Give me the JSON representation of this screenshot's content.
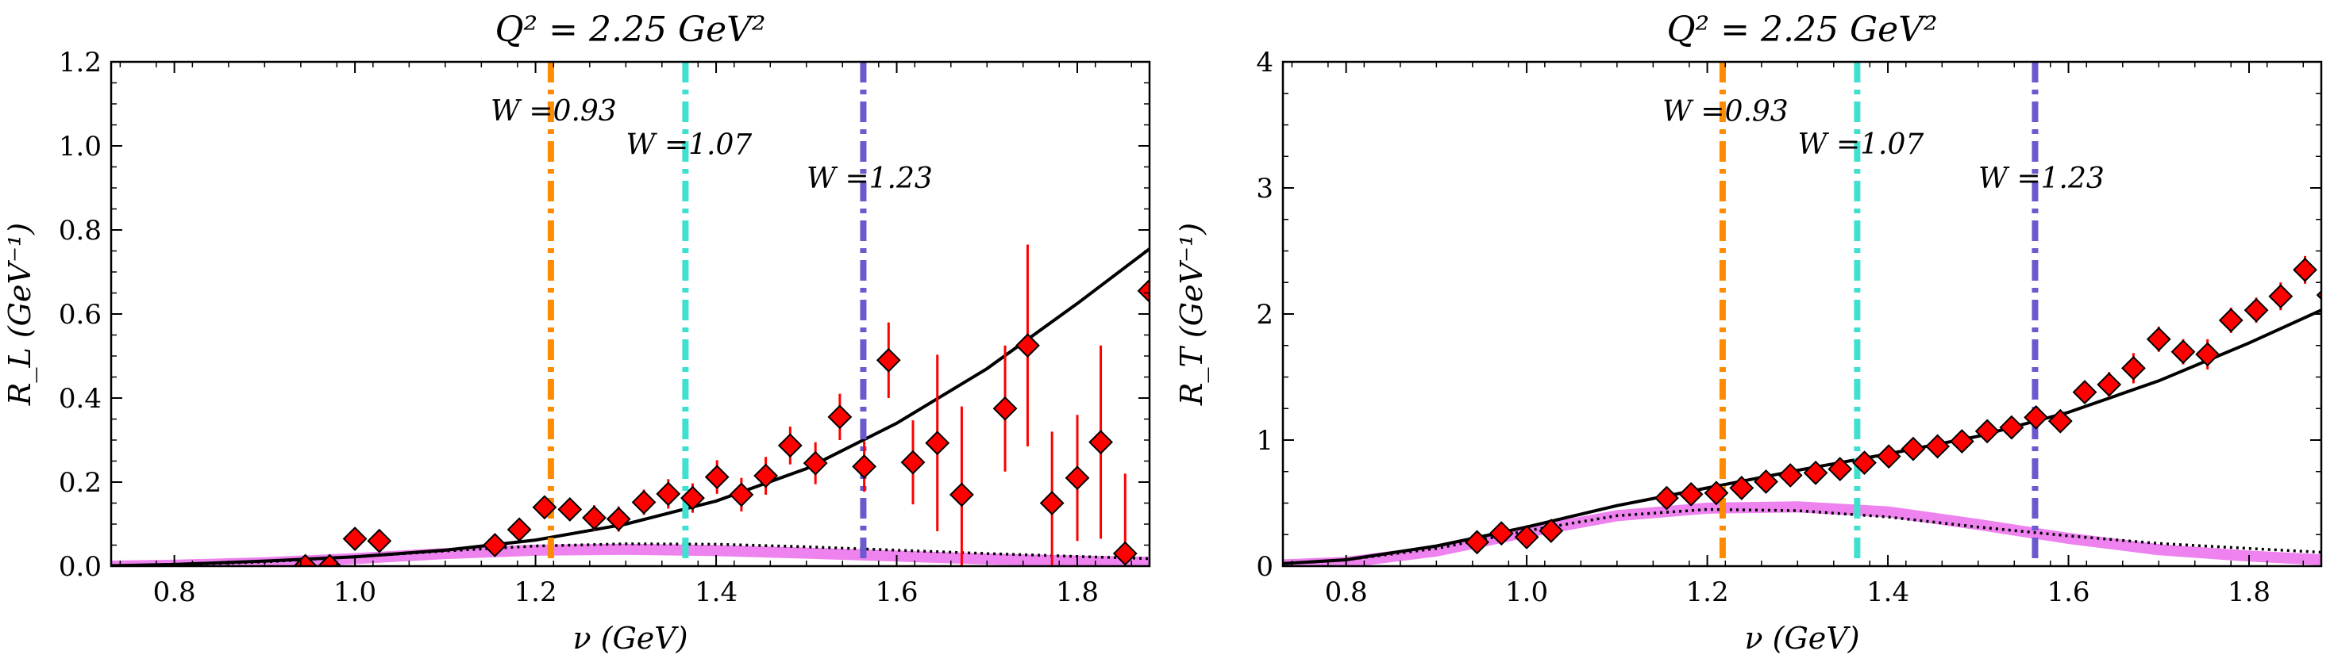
{
  "chart_data": [
    {
      "type": "scatter",
      "title": "Q² = 2.25 GeV²",
      "xlabel": "ν (GeV)",
      "ylabel": "R_L (GeV⁻¹)",
      "xlim": [
        0.73,
        1.88
      ],
      "ylim": [
        0.0,
        1.2
      ],
      "xticks": [
        0.8,
        1.0,
        1.2,
        1.4,
        1.6,
        1.8
      ],
      "xtick_labels": [
        "0.8",
        "1.0",
        "1.2",
        "1.4",
        "1.6",
        "1.8"
      ],
      "yticks": [
        0.0,
        0.2,
        0.4,
        0.6,
        0.8,
        1.0,
        1.2
      ],
      "ytick_labels": [
        "0.0",
        "0.2",
        "0.4",
        "0.6",
        "0.8",
        "1.0",
        "1.2"
      ],
      "grid": false,
      "vlines": [
        {
          "x": 1.217,
          "label": "W =0.93",
          "color": "#ff8c00",
          "label_x": 1.22,
          "label_y": 1.06
        },
        {
          "x": 1.366,
          "label": "W =1.07",
          "color": "#40e0d0",
          "label_x": 1.37,
          "label_y": 0.98
        },
        {
          "x": 1.563,
          "label": "W =1.23",
          "color": "#6a5acd",
          "label_x": 1.57,
          "label_y": 0.9
        }
      ],
      "points": [
        {
          "x": 0.945,
          "y": 0.0,
          "err": 0.0
        },
        {
          "x": 0.972,
          "y": 0.0,
          "err": 0.0
        },
        {
          "x": 1.0,
          "y": 0.065,
          "err": 0.0
        },
        {
          "x": 1.027,
          "y": 0.06,
          "err": 0.0
        },
        {
          "x": 1.155,
          "y": 0.05,
          "err": 0.02
        },
        {
          "x": 1.182,
          "y": 0.087,
          "err": 0.02
        },
        {
          "x": 1.21,
          "y": 0.14,
          "err": 0.02
        },
        {
          "x": 1.238,
          "y": 0.135,
          "err": 0.025
        },
        {
          "x": 1.265,
          "y": 0.115,
          "err": 0.03
        },
        {
          "x": 1.292,
          "y": 0.112,
          "err": 0.03
        },
        {
          "x": 1.32,
          "y": 0.152,
          "err": 0.03
        },
        {
          "x": 1.347,
          "y": 0.172,
          "err": 0.035
        },
        {
          "x": 1.374,
          "y": 0.162,
          "err": 0.035
        },
        {
          "x": 1.401,
          "y": 0.212,
          "err": 0.04
        },
        {
          "x": 1.428,
          "y": 0.17,
          "err": 0.04
        },
        {
          "x": 1.455,
          "y": 0.215,
          "err": 0.045
        },
        {
          "x": 1.482,
          "y": 0.287,
          "err": 0.045
        },
        {
          "x": 1.51,
          "y": 0.245,
          "err": 0.05
        },
        {
          "x": 1.537,
          "y": 0.355,
          "err": 0.055
        },
        {
          "x": 1.564,
          "y": 0.237,
          "err": 0.06
        },
        {
          "x": 1.591,
          "y": 0.49,
          "err": 0.09
        },
        {
          "x": 1.618,
          "y": 0.247,
          "err": 0.1
        },
        {
          "x": 1.645,
          "y": 0.293,
          "err": 0.21
        },
        {
          "x": 1.672,
          "y": 0.17,
          "err": 0.21
        },
        {
          "x": 1.72,
          "y": 0.375,
          "err": 0.15
        },
        {
          "x": 1.745,
          "y": 0.525,
          "err": 0.24
        },
        {
          "x": 1.772,
          "y": 0.15,
          "err": 0.17
        },
        {
          "x": 1.8,
          "y": 0.21,
          "err": 0.15
        },
        {
          "x": 1.826,
          "y": 0.295,
          "err": 0.23
        },
        {
          "x": 1.853,
          "y": 0.03,
          "err": 0.19
        },
        {
          "x": 1.88,
          "y": 0.655,
          "err": 0.0
        }
      ],
      "solid_curve": {
        "x": [
          0.73,
          0.8,
          0.9,
          1.0,
          1.1,
          1.2,
          1.3,
          1.4,
          1.5,
          1.6,
          1.7,
          1.8,
          1.88
        ],
        "y": [
          0.001,
          0.004,
          0.012,
          0.022,
          0.038,
          0.062,
          0.1,
          0.155,
          0.232,
          0.34,
          0.47,
          0.625,
          0.755
        ]
      },
      "dotted_curve": {
        "x": [
          0.73,
          0.8,
          0.9,
          1.0,
          1.1,
          1.2,
          1.3,
          1.4,
          1.5,
          1.6,
          1.7,
          1.8,
          1.88
        ],
        "y": [
          0.001,
          0.003,
          0.01,
          0.022,
          0.036,
          0.048,
          0.053,
          0.052,
          0.046,
          0.038,
          0.03,
          0.023,
          0.018
        ]
      },
      "band_curve": {
        "x": [
          0.73,
          0.8,
          0.9,
          1.0,
          1.1,
          1.2,
          1.3,
          1.4,
          1.5,
          1.6,
          1.7,
          1.8,
          1.88
        ],
        "y": [
          0.0,
          0.002,
          0.008,
          0.018,
          0.03,
          0.038,
          0.04,
          0.037,
          0.031,
          0.024,
          0.017,
          0.012,
          0.009
        ]
      }
    },
    {
      "type": "scatter",
      "title": "Q² = 2.25 GeV²",
      "xlabel": "ν (GeV)",
      "ylabel": "R_T (GeV⁻¹)",
      "xlim": [
        0.73,
        1.88
      ],
      "ylim": [
        0.0,
        4.0
      ],
      "xticks": [
        0.8,
        1.0,
        1.2,
        1.4,
        1.6,
        1.8
      ],
      "xtick_labels": [
        "0.8",
        "1.0",
        "1.2",
        "1.4",
        "1.6",
        "1.8"
      ],
      "yticks": [
        0,
        1,
        2,
        3,
        4
      ],
      "ytick_labels": [
        "0",
        "1",
        "2",
        "3",
        "4"
      ],
      "grid": false,
      "vlines": [
        {
          "x": 1.217,
          "label": "W =0.93",
          "color": "#ff8c00",
          "label_x": 1.22,
          "label_y": 3.53
        },
        {
          "x": 1.366,
          "label": "W =1.07",
          "color": "#40e0d0",
          "label_x": 1.37,
          "label_y": 3.27
        },
        {
          "x": 1.563,
          "label": "W =1.23",
          "color": "#6a5acd",
          "label_x": 1.57,
          "label_y": 3.0
        }
      ],
      "points": [
        {
          "x": 0.945,
          "y": 0.19,
          "err": 0.03
        },
        {
          "x": 0.972,
          "y": 0.26,
          "err": 0.03
        },
        {
          "x": 1.0,
          "y": 0.23,
          "err": 0.03
        },
        {
          "x": 1.027,
          "y": 0.28,
          "err": 0.03
        },
        {
          "x": 1.155,
          "y": 0.54,
          "err": 0.04
        },
        {
          "x": 1.182,
          "y": 0.57,
          "err": 0.04
        },
        {
          "x": 1.21,
          "y": 0.58,
          "err": 0.04
        },
        {
          "x": 1.238,
          "y": 0.62,
          "err": 0.04
        },
        {
          "x": 1.265,
          "y": 0.67,
          "err": 0.04
        },
        {
          "x": 1.292,
          "y": 0.72,
          "err": 0.04
        },
        {
          "x": 1.32,
          "y": 0.74,
          "err": 0.04
        },
        {
          "x": 1.347,
          "y": 0.77,
          "err": 0.04
        },
        {
          "x": 1.374,
          "y": 0.82,
          "err": 0.05
        },
        {
          "x": 1.401,
          "y": 0.87,
          "err": 0.05
        },
        {
          "x": 1.428,
          "y": 0.93,
          "err": 0.05
        },
        {
          "x": 1.455,
          "y": 0.95,
          "err": 0.05
        },
        {
          "x": 1.482,
          "y": 0.99,
          "err": 0.05
        },
        {
          "x": 1.51,
          "y": 1.07,
          "err": 0.06
        },
        {
          "x": 1.537,
          "y": 1.1,
          "err": 0.06
        },
        {
          "x": 1.564,
          "y": 1.18,
          "err": 0.07
        },
        {
          "x": 1.591,
          "y": 1.15,
          "err": 0.07
        },
        {
          "x": 1.618,
          "y": 1.38,
          "err": 0.08
        },
        {
          "x": 1.645,
          "y": 1.44,
          "err": 0.1
        },
        {
          "x": 1.672,
          "y": 1.57,
          "err": 0.12
        },
        {
          "x": 1.7,
          "y": 1.8,
          "err": 0.1
        },
        {
          "x": 1.727,
          "y": 1.7,
          "err": 0.1
        },
        {
          "x": 1.754,
          "y": 1.68,
          "err": 0.12
        },
        {
          "x": 1.78,
          "y": 1.95,
          "err": 0.1
        },
        {
          "x": 1.808,
          "y": 2.03,
          "err": 0.1
        },
        {
          "x": 1.835,
          "y": 2.14,
          "err": 0.11
        },
        {
          "x": 1.862,
          "y": 2.35,
          "err": 0.11
        },
        {
          "x": 1.888,
          "y": 2.15,
          "err": 0.12
        }
      ],
      "solid_curve": {
        "x": [
          0.73,
          0.8,
          0.9,
          1.0,
          1.1,
          1.2,
          1.3,
          1.4,
          1.5,
          1.6,
          1.7,
          1.8,
          1.88
        ],
        "y": [
          0.02,
          0.05,
          0.16,
          0.31,
          0.48,
          0.62,
          0.76,
          0.89,
          1.03,
          1.22,
          1.47,
          1.77,
          2.03
        ]
      },
      "dotted_curve": {
        "x": [
          0.73,
          0.8,
          0.9,
          1.0,
          1.1,
          1.2,
          1.3,
          1.4,
          1.5,
          1.6,
          1.7,
          1.8,
          1.88
        ],
        "y": [
          0.02,
          0.05,
          0.14,
          0.28,
          0.4,
          0.45,
          0.44,
          0.39,
          0.31,
          0.24,
          0.18,
          0.14,
          0.11
        ]
      },
      "band_curve": {
        "x": [
          0.73,
          0.8,
          0.9,
          1.0,
          1.1,
          1.2,
          1.3,
          1.4,
          1.5,
          1.6,
          1.7,
          1.8,
          1.88
        ],
        "y": [
          0.01,
          0.03,
          0.12,
          0.27,
          0.4,
          0.46,
          0.47,
          0.43,
          0.33,
          0.22,
          0.13,
          0.08,
          0.05
        ]
      }
    }
  ]
}
